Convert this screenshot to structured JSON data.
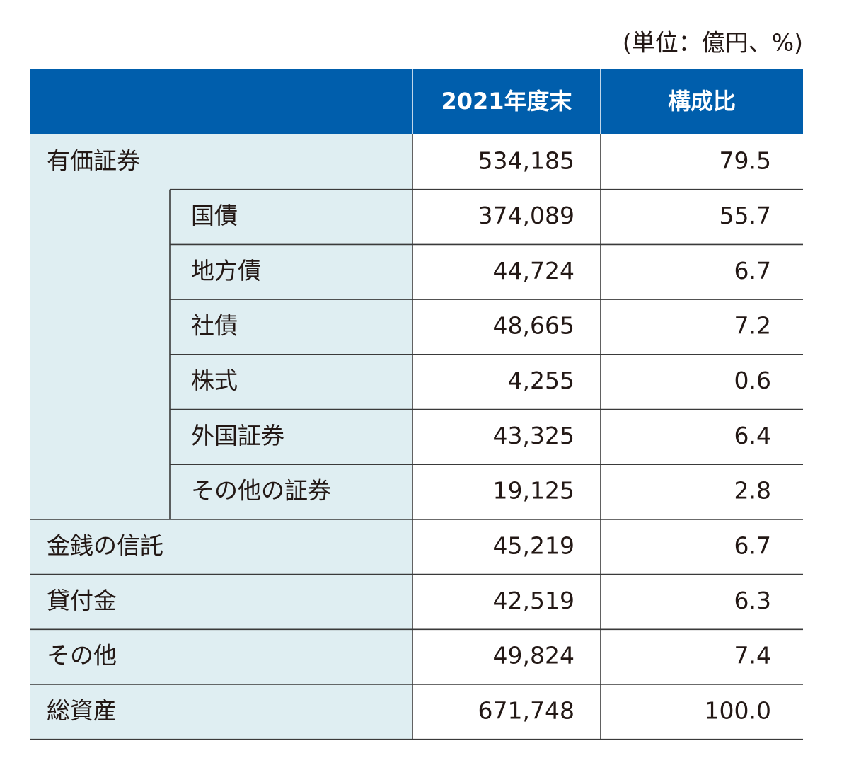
{
  "unit_note": "(単位：億円、%)",
  "table": {
    "columns": [
      "2021年度末",
      "構成比"
    ],
    "rows": [
      {
        "label": "有価証券",
        "value": "534,185",
        "ratio": "79.5",
        "children": [
          {
            "label": "国債",
            "value": "374,089",
            "ratio": "55.7"
          },
          {
            "label": "地方債",
            "value": "44,724",
            "ratio": "6.7"
          },
          {
            "label": "社債",
            "value": "48,665",
            "ratio": "7.2"
          },
          {
            "label": "株式",
            "value": "4,255",
            "ratio": "0.6"
          },
          {
            "label": "外国証券",
            "value": "43,325",
            "ratio": "6.4"
          },
          {
            "label": "その他の証券",
            "value": "19,125",
            "ratio": "2.8"
          }
        ]
      },
      {
        "label": "金銭の信託",
        "value": "45,219",
        "ratio": "6.7"
      },
      {
        "label": "貸付金",
        "value": "42,519",
        "ratio": "6.3"
      },
      {
        "label": "その他",
        "value": "49,824",
        "ratio": "7.4"
      },
      {
        "label": "総資産",
        "value": "671,748",
        "ratio": "100.0"
      }
    ]
  }
}
